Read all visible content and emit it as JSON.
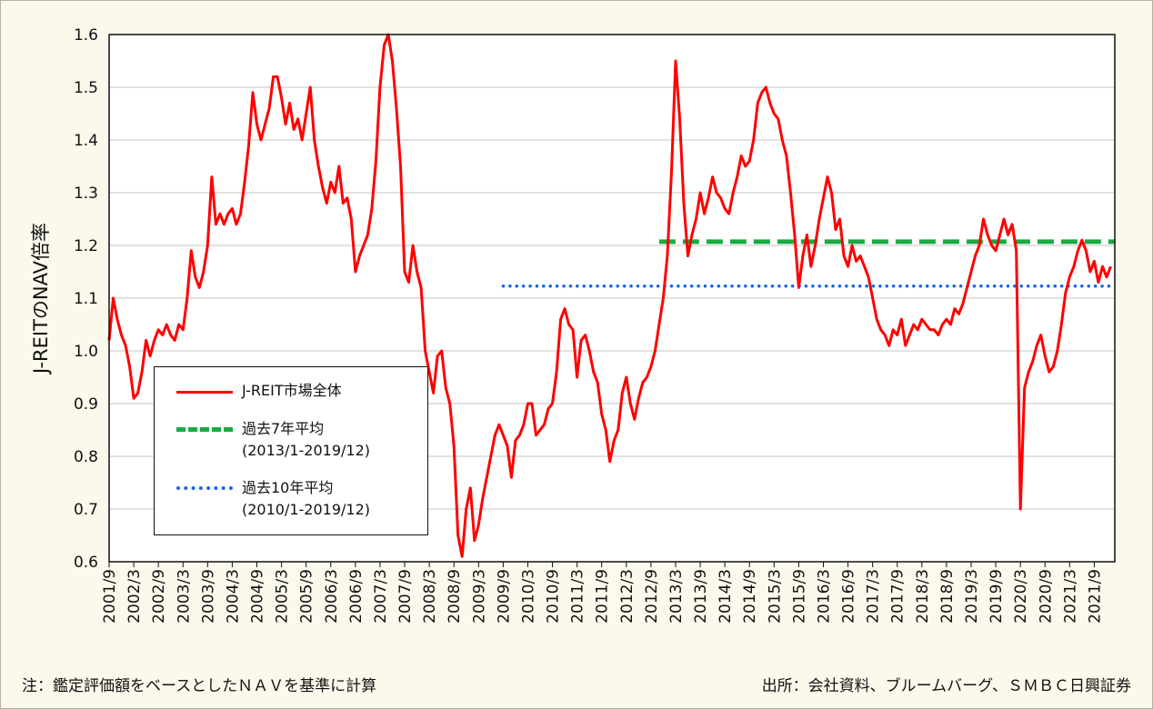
{
  "footer": {
    "note_left": "注：鑑定評価額をベースとしたＮＡＶを基準に計算",
    "note_right": "出所：会社資料、ブルームバーグ、ＳＭＢＣ日興証券"
  },
  "chart_data": {
    "type": "line",
    "ylabel": "J-REITのNAV倍率",
    "ylim": [
      0.6,
      1.6
    ],
    "y_ticks": [
      "0.6",
      "0.7",
      "0.8",
      "0.9",
      "1.0",
      "1.1",
      "1.2",
      "1.3",
      "1.4",
      "1.5",
      "1.6"
    ],
    "x_range": [
      "2001/9",
      "2022/2"
    ],
    "x_ticks": [
      "2001/9",
      "2002/3",
      "2002/9",
      "2003/3",
      "2003/9",
      "2004/3",
      "2004/9",
      "2005/3",
      "2005/9",
      "2006/3",
      "2006/9",
      "2007/3",
      "2007/9",
      "2008/3",
      "2008/9",
      "2009/3",
      "2009/9",
      "2010/3",
      "2010/9",
      "2011/3",
      "2011/9",
      "2012/3",
      "2012/9",
      "2013/3",
      "2013/9",
      "2014/3",
      "2014/9",
      "2015/3",
      "2015/9",
      "2016/3",
      "2016/9",
      "2017/3",
      "2017/9",
      "2018/3",
      "2018/9",
      "2019/3",
      "2019/9",
      "2020/3",
      "2020/9",
      "2021/3",
      "2021/9"
    ],
    "grid": true,
    "legend_position": "lower-left",
    "series": [
      {
        "name": "J-REIT市場全体",
        "color": "#ff0000",
        "style": "solid",
        "points": [
          [
            "2001/9",
            1.02
          ],
          [
            "2001/10",
            1.1
          ],
          [
            "2001/11",
            1.06
          ],
          [
            "2001/12",
            1.03
          ],
          [
            "2002/1",
            1.01
          ],
          [
            "2002/2",
            0.97
          ],
          [
            "2002/3",
            0.91
          ],
          [
            "2002/4",
            0.92
          ],
          [
            "2002/5",
            0.96
          ],
          [
            "2002/6",
            1.02
          ],
          [
            "2002/7",
            0.99
          ],
          [
            "2002/8",
            1.02
          ],
          [
            "2002/9",
            1.04
          ],
          [
            "2002/10",
            1.03
          ],
          [
            "2002/11",
            1.05
          ],
          [
            "2002/12",
            1.03
          ],
          [
            "2003/1",
            1.02
          ],
          [
            "2003/2",
            1.05
          ],
          [
            "2003/3",
            1.04
          ],
          [
            "2003/4",
            1.1
          ],
          [
            "2003/5",
            1.19
          ],
          [
            "2003/6",
            1.14
          ],
          [
            "2003/7",
            1.12
          ],
          [
            "2003/8",
            1.15
          ],
          [
            "2003/9",
            1.2
          ],
          [
            "2003/10",
            1.33
          ],
          [
            "2003/11",
            1.24
          ],
          [
            "2003/12",
            1.26
          ],
          [
            "2004/1",
            1.24
          ],
          [
            "2004/2",
            1.26
          ],
          [
            "2004/3",
            1.27
          ],
          [
            "2004/4",
            1.24
          ],
          [
            "2004/5",
            1.26
          ],
          [
            "2004/6",
            1.32
          ],
          [
            "2004/7",
            1.39
          ],
          [
            "2004/8",
            1.49
          ],
          [
            "2004/9",
            1.43
          ],
          [
            "2004/10",
            1.4
          ],
          [
            "2004/11",
            1.43
          ],
          [
            "2004/12",
            1.46
          ],
          [
            "2005/1",
            1.52
          ],
          [
            "2005/2",
            1.52
          ],
          [
            "2005/3",
            1.48
          ],
          [
            "2005/4",
            1.43
          ],
          [
            "2005/5",
            1.47
          ],
          [
            "2005/6",
            1.42
          ],
          [
            "2005/7",
            1.44
          ],
          [
            "2005/8",
            1.4
          ],
          [
            "2005/9",
            1.45
          ],
          [
            "2005/10",
            1.5
          ],
          [
            "2005/11",
            1.4
          ],
          [
            "2005/12",
            1.35
          ],
          [
            "2006/1",
            1.31
          ],
          [
            "2006/2",
            1.28
          ],
          [
            "2006/3",
            1.32
          ],
          [
            "2006/4",
            1.3
          ],
          [
            "2006/5",
            1.35
          ],
          [
            "2006/6",
            1.28
          ],
          [
            "2006/7",
            1.29
          ],
          [
            "2006/8",
            1.25
          ],
          [
            "2006/9",
            1.15
          ],
          [
            "2006/10",
            1.18
          ],
          [
            "2006/11",
            1.2
          ],
          [
            "2006/12",
            1.22
          ],
          [
            "2007/1",
            1.27
          ],
          [
            "2007/2",
            1.36
          ],
          [
            "2007/3",
            1.5
          ],
          [
            "2007/4",
            1.58
          ],
          [
            "2007/5",
            1.6
          ],
          [
            "2007/6",
            1.55
          ],
          [
            "2007/7",
            1.46
          ],
          [
            "2007/8",
            1.35
          ],
          [
            "2007/9",
            1.15
          ],
          [
            "2007/10",
            1.13
          ],
          [
            "2007/11",
            1.2
          ],
          [
            "2007/12",
            1.15
          ],
          [
            "2008/1",
            1.12
          ],
          [
            "2008/2",
            1.0
          ],
          [
            "2008/3",
            0.96
          ],
          [
            "2008/4",
            0.92
          ],
          [
            "2008/5",
            0.99
          ],
          [
            "2008/6",
            1.0
          ],
          [
            "2008/7",
            0.93
          ],
          [
            "2008/8",
            0.9
          ],
          [
            "2008/9",
            0.82
          ],
          [
            "2008/10",
            0.65
          ],
          [
            "2008/11",
            0.61
          ],
          [
            "2008/12",
            0.7
          ],
          [
            "2009/1",
            0.74
          ],
          [
            "2009/2",
            0.64
          ],
          [
            "2009/3",
            0.67
          ],
          [
            "2009/4",
            0.72
          ],
          [
            "2009/5",
            0.76
          ],
          [
            "2009/6",
            0.8
          ],
          [
            "2009/7",
            0.84
          ],
          [
            "2009/8",
            0.86
          ],
          [
            "2009/9",
            0.84
          ],
          [
            "2009/10",
            0.82
          ],
          [
            "2009/11",
            0.76
          ],
          [
            "2009/12",
            0.83
          ],
          [
            "2010/1",
            0.84
          ],
          [
            "2010/2",
            0.86
          ],
          [
            "2010/3",
            0.9
          ],
          [
            "2010/4",
            0.9
          ],
          [
            "2010/5",
            0.84
          ],
          [
            "2010/6",
            0.85
          ],
          [
            "2010/7",
            0.86
          ],
          [
            "2010/8",
            0.89
          ],
          [
            "2010/9",
            0.9
          ],
          [
            "2010/10",
            0.96
          ],
          [
            "2010/11",
            1.06
          ],
          [
            "2010/12",
            1.08
          ],
          [
            "2011/1",
            1.05
          ],
          [
            "2011/2",
            1.04
          ],
          [
            "2011/3",
            0.95
          ],
          [
            "2011/4",
            1.02
          ],
          [
            "2011/5",
            1.03
          ],
          [
            "2011/6",
            1.0
          ],
          [
            "2011/7",
            0.96
          ],
          [
            "2011/8",
            0.94
          ],
          [
            "2011/9",
            0.88
          ],
          [
            "2011/10",
            0.85
          ],
          [
            "2011/11",
            0.79
          ],
          [
            "2011/12",
            0.83
          ],
          [
            "2012/1",
            0.85
          ],
          [
            "2012/2",
            0.92
          ],
          [
            "2012/3",
            0.95
          ],
          [
            "2012/4",
            0.9
          ],
          [
            "2012/5",
            0.87
          ],
          [
            "2012/6",
            0.91
          ],
          [
            "2012/7",
            0.94
          ],
          [
            "2012/8",
            0.95
          ],
          [
            "2012/9",
            0.97
          ],
          [
            "2012/10",
            1.0
          ],
          [
            "2012/11",
            1.05
          ],
          [
            "2012/12",
            1.1
          ],
          [
            "2013/1",
            1.18
          ],
          [
            "2013/2",
            1.34
          ],
          [
            "2013/3",
            1.55
          ],
          [
            "2013/4",
            1.44
          ],
          [
            "2013/5",
            1.28
          ],
          [
            "2013/6",
            1.18
          ],
          [
            "2013/7",
            1.22
          ],
          [
            "2013/8",
            1.25
          ],
          [
            "2013/9",
            1.3
          ],
          [
            "2013/10",
            1.26
          ],
          [
            "2013/11",
            1.29
          ],
          [
            "2013/12",
            1.33
          ],
          [
            "2014/1",
            1.3
          ],
          [
            "2014/2",
            1.29
          ],
          [
            "2014/3",
            1.27
          ],
          [
            "2014/4",
            1.26
          ],
          [
            "2014/5",
            1.3
          ],
          [
            "2014/6",
            1.33
          ],
          [
            "2014/7",
            1.37
          ],
          [
            "2014/8",
            1.35
          ],
          [
            "2014/9",
            1.36
          ],
          [
            "2014/10",
            1.4
          ],
          [
            "2014/11",
            1.47
          ],
          [
            "2014/12",
            1.49
          ],
          [
            "2015/1",
            1.5
          ],
          [
            "2015/2",
            1.47
          ],
          [
            "2015/3",
            1.45
          ],
          [
            "2015/4",
            1.44
          ],
          [
            "2015/5",
            1.4
          ],
          [
            "2015/6",
            1.37
          ],
          [
            "2015/7",
            1.3
          ],
          [
            "2015/8",
            1.22
          ],
          [
            "2015/9",
            1.12
          ],
          [
            "2015/10",
            1.18
          ],
          [
            "2015/11",
            1.22
          ],
          [
            "2015/12",
            1.16
          ],
          [
            "2016/1",
            1.2
          ],
          [
            "2016/2",
            1.25
          ],
          [
            "2016/3",
            1.29
          ],
          [
            "2016/4",
            1.33
          ],
          [
            "2016/5",
            1.3
          ],
          [
            "2016/6",
            1.23
          ],
          [
            "2016/7",
            1.25
          ],
          [
            "2016/8",
            1.18
          ],
          [
            "2016/9",
            1.16
          ],
          [
            "2016/10",
            1.2
          ],
          [
            "2016/11",
            1.17
          ],
          [
            "2016/12",
            1.18
          ],
          [
            "2017/1",
            1.16
          ],
          [
            "2017/2",
            1.14
          ],
          [
            "2017/3",
            1.1
          ],
          [
            "2017/4",
            1.06
          ],
          [
            "2017/5",
            1.04
          ],
          [
            "2017/6",
            1.03
          ],
          [
            "2017/7",
            1.01
          ],
          [
            "2017/8",
            1.04
          ],
          [
            "2017/9",
            1.03
          ],
          [
            "2017/10",
            1.06
          ],
          [
            "2017/11",
            1.01
          ],
          [
            "2017/12",
            1.03
          ],
          [
            "2018/1",
            1.05
          ],
          [
            "2018/2",
            1.04
          ],
          [
            "2018/3",
            1.06
          ],
          [
            "2018/4",
            1.05
          ],
          [
            "2018/5",
            1.04
          ],
          [
            "2018/6",
            1.04
          ],
          [
            "2018/7",
            1.03
          ],
          [
            "2018/8",
            1.05
          ],
          [
            "2018/9",
            1.06
          ],
          [
            "2018/10",
            1.05
          ],
          [
            "2018/11",
            1.08
          ],
          [
            "2018/12",
            1.07
          ],
          [
            "2019/1",
            1.09
          ],
          [
            "2019/2",
            1.12
          ],
          [
            "2019/3",
            1.15
          ],
          [
            "2019/4",
            1.18
          ],
          [
            "2019/5",
            1.2
          ],
          [
            "2019/6",
            1.25
          ],
          [
            "2019/7",
            1.22
          ],
          [
            "2019/8",
            1.2
          ],
          [
            "2019/9",
            1.19
          ],
          [
            "2019/10",
            1.22
          ],
          [
            "2019/11",
            1.25
          ],
          [
            "2019/12",
            1.22
          ],
          [
            "2020/1",
            1.24
          ],
          [
            "2020/2",
            1.19
          ],
          [
            "2020/3",
            0.7
          ],
          [
            "2020/4",
            0.93
          ],
          [
            "2020/5",
            0.96
          ],
          [
            "2020/6",
            0.98
          ],
          [
            "2020/7",
            1.01
          ],
          [
            "2020/8",
            1.03
          ],
          [
            "2020/9",
            0.99
          ],
          [
            "2020/10",
            0.96
          ],
          [
            "2020/11",
            0.97
          ],
          [
            "2020/12",
            1.0
          ],
          [
            "2021/1",
            1.05
          ],
          [
            "2021/2",
            1.11
          ],
          [
            "2021/3",
            1.14
          ],
          [
            "2021/4",
            1.16
          ],
          [
            "2021/5",
            1.19
          ],
          [
            "2021/6",
            1.21
          ],
          [
            "2021/7",
            1.19
          ],
          [
            "2021/8",
            1.15
          ],
          [
            "2021/9",
            1.17
          ],
          [
            "2021/10",
            1.13
          ],
          [
            "2021/11",
            1.16
          ],
          [
            "2021/12",
            1.14
          ],
          [
            "2022/1",
            1.16
          ]
        ]
      },
      {
        "name": "過去7年平均\n(2013/1-2019/12)",
        "color": "#1aaa44",
        "style": "dashed",
        "points": [
          [
            "2012/11",
            1.207
          ],
          [
            "2022/2",
            1.207
          ]
        ]
      },
      {
        "name": "過去10年平均\n(2010/1-2019/12)",
        "color": "#1666e6",
        "style": "dotted",
        "points": [
          [
            "2009/9",
            1.123
          ],
          [
            "2022/2",
            1.123
          ]
        ]
      }
    ]
  }
}
